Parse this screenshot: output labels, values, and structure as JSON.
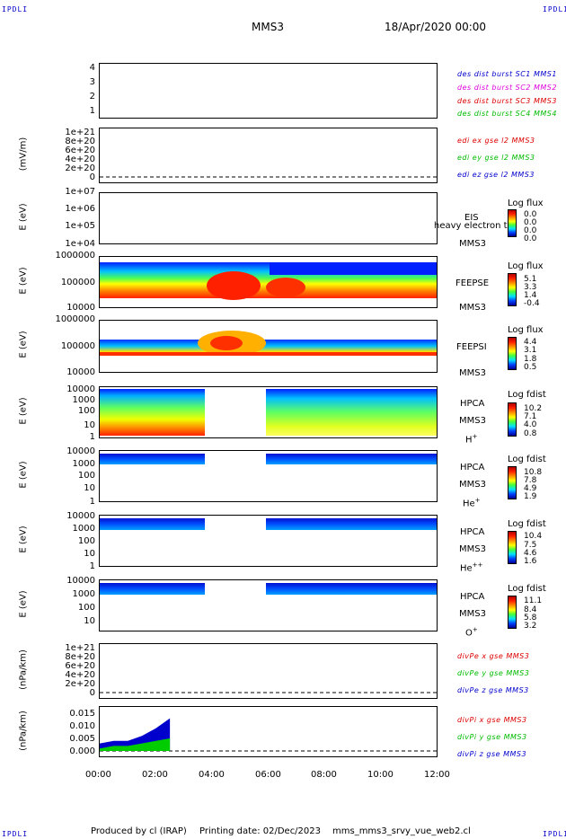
{
  "corners": {
    "label": "IPDLI"
  },
  "header": {
    "mission": "MMS3",
    "datetime": "18/Apr/2020 00:00"
  },
  "footer": {
    "produced_by": "Produced by cl (IRAP)",
    "printing": "Printing date: 02/Dec/2023",
    "script": "mms_mms3_srvy_vue_web2.cl"
  },
  "colors": {
    "blue": "#0000cc",
    "magenta": "#dd00dd",
    "red": "#dd0000",
    "green": "#00bb00"
  },
  "chart_data": [
    {
      "type": "line",
      "id": "p1",
      "ylim": [
        0.7,
        4.3
      ],
      "ticks": [
        "4",
        "3",
        "2",
        "1"
      ],
      "legend": [
        "des dist burst SC1 MMS1",
        "des dist burst SC2 MMS2",
        "des dist burst SC3 MMS3",
        "des dist burst SC4 MMS4"
      ]
    },
    {
      "type": "line",
      "id": "p2",
      "ylabel": "(mV/m)",
      "ticks": [
        "1e+21",
        "8e+20",
        "6e+20",
        "4e+20",
        "2e+20",
        "0"
      ],
      "legend": [
        "edi ex gse l2 MMS3",
        "edi ey gse l2 MMS3",
        "edi ez gse l2 MMS3"
      ]
    },
    {
      "type": "heatmap",
      "id": "p3",
      "ylabel": "E (eV)",
      "ticks": [
        "1e+07",
        "1e+06",
        "1e+05",
        "1e+04"
      ],
      "side": [
        "EIS",
        "MMS3"
      ],
      "overlay": "heavy electron to",
      "colorbar": {
        "title": "Log flux",
        "values": [
          "0.0",
          "0.0",
          "0.0",
          "0.0"
        ]
      }
    },
    {
      "type": "heatmap",
      "id": "p4",
      "ylabel": "E (eV)",
      "ticks": [
        "1000000",
        "100000",
        "10000"
      ],
      "side": [
        "FEEPSE",
        "MMS3"
      ],
      "colorbar": {
        "title": "Log flux",
        "values": [
          "5.1",
          "3.3",
          "1.4",
          "-0.4"
        ]
      }
    },
    {
      "type": "heatmap",
      "id": "p5",
      "ylabel": "E (eV)",
      "ticks": [
        "1000000",
        "100000",
        "10000"
      ],
      "side": [
        "FEEPSI",
        "MMS3"
      ],
      "colorbar": {
        "title": "Log flux",
        "values": [
          "4.4",
          "3.1",
          "1.8",
          "0.5"
        ]
      }
    },
    {
      "type": "heatmap",
      "id": "p6",
      "ylabel": "E (eV)",
      "ticks": [
        "10000",
        "1000",
        "100",
        "10",
        "1"
      ],
      "side": [
        "HPCA",
        "MMS3",
        "H",
        "+"
      ],
      "colorbar": {
        "title": "Log fdist",
        "values": [
          "10.2",
          "7.1",
          "4.0",
          "0.8"
        ]
      }
    },
    {
      "type": "heatmap",
      "id": "p7",
      "ylabel": "E (eV)",
      "ticks": [
        "10000",
        "1000",
        "100",
        "10",
        "1"
      ],
      "side": [
        "HPCA",
        "MMS3",
        "He",
        "+"
      ],
      "colorbar": {
        "title": "Log fdist",
        "values": [
          "10.8",
          "7.8",
          "4.9",
          "1.9"
        ]
      }
    },
    {
      "type": "heatmap",
      "id": "p8",
      "ylabel": "E (eV)",
      "ticks": [
        "10000",
        "1000",
        "100",
        "10",
        "1"
      ],
      "side": [
        "HPCA",
        "MMS3",
        "He",
        "++"
      ],
      "colorbar": {
        "title": "Log fdist",
        "values": [
          "10.4",
          "7.5",
          "4.6",
          "1.6"
        ]
      }
    },
    {
      "type": "heatmap",
      "id": "p9",
      "ylabel": "E (eV)",
      "ticks": [
        "10000",
        "1000",
        "100",
        "10"
      ],
      "side": [
        "HPCA",
        "MMS3",
        "O",
        "+"
      ],
      "colorbar": {
        "title": "Log fdist",
        "values": [
          "11.1",
          "8.4",
          "5.8",
          "3.2"
        ]
      }
    },
    {
      "type": "line",
      "id": "p10",
      "ylabel": "(nPa/km)",
      "ticks": [
        "1e+21",
        "8e+20",
        "6e+20",
        "4e+20",
        "2e+20",
        "0"
      ],
      "legend": [
        "divPe x gse MMS3",
        "divPe y gse MMS3",
        "divPe z gse MMS3"
      ]
    },
    {
      "type": "line",
      "id": "p11",
      "ylabel": "(nPa/km)",
      "ticks": [
        "0.015",
        "0.010",
        "0.005",
        "0.000"
      ],
      "legend": [
        "divPi x gse MMS3",
        "divPi y gse MMS3",
        "divPi z gse MMS3"
      ],
      "series": [
        {
          "name": "divPi z gse MMS3",
          "x": [
            "00:00",
            "00:30",
            "01:00",
            "01:30",
            "02:00",
            "02:30"
          ],
          "values": [
            0.003,
            0.004,
            0.004,
            0.006,
            0.009,
            0.013
          ]
        },
        {
          "name": "divPi y gse MMS3",
          "x": [
            "00:00",
            "00:30",
            "01:00",
            "01:30",
            "02:00",
            "02:30"
          ],
          "values": [
            0.001,
            0.002,
            0.002,
            0.003,
            0.004,
            0.005
          ]
        }
      ]
    }
  ],
  "xaxis": {
    "ticks": [
      "00:00",
      "02:00",
      "04:00",
      "06:00",
      "08:00",
      "10:00",
      "12:00"
    ]
  }
}
